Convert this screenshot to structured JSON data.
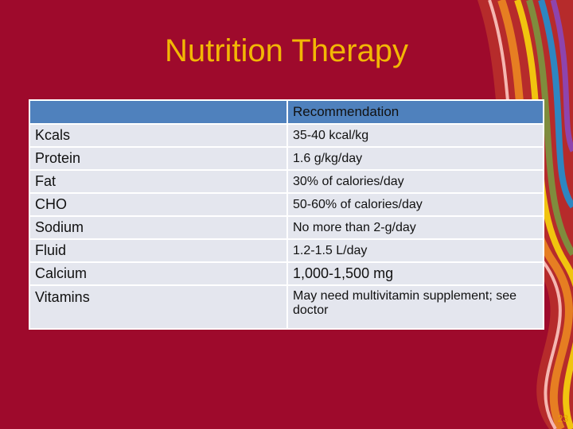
{
  "title": "Nutrition Therapy",
  "table": {
    "header": "Recommendation",
    "rows": [
      [
        "Kcals",
        "35-40 kcal/kg"
      ],
      [
        "Protein",
        "1.6 g/kg/day"
      ],
      [
        "Fat",
        "30% of calories/day"
      ],
      [
        "CHO",
        "50-60% of calories/day"
      ],
      [
        "Sodium",
        "No more than 2-g/day"
      ],
      [
        "Fluid",
        "1.2-1.5 L/day"
      ],
      [
        "Calcium",
        "1,000-1,500 mg"
      ],
      [
        "Vitamins",
        "May need multivitamin supplement; see doctor"
      ]
    ]
  },
  "page_number": "23"
}
